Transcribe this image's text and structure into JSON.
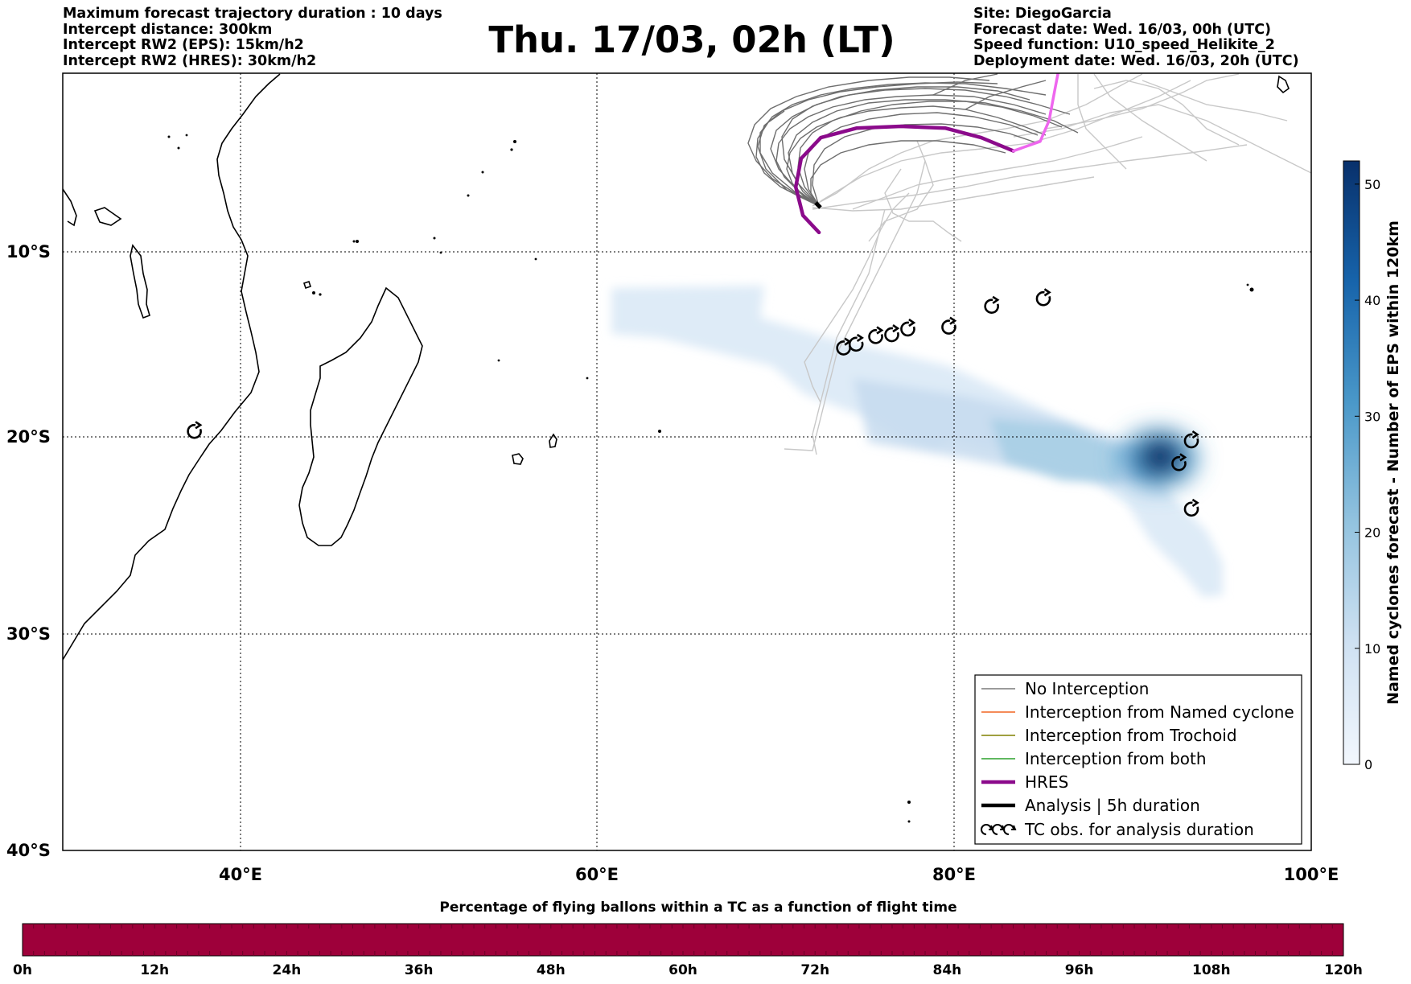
{
  "header": {
    "title": "Thu. 17/03, 02h (LT)",
    "info_left": [
      "Maximum forecast trajectory duration : 10 days",
      "Intercept distance: 300km",
      "Intercept RW2 (EPS):  15km/h2",
      "Intercept RW2 (HRES): 30km/h2"
    ],
    "info_right": [
      "Site: DiegoGarcia",
      "Forecast date: Wed. 16/03, 00h (UTC)",
      "Speed function: U10_speed_Helikite_2",
      "Deployment date: Wed. 16/03, 20h (UTC)"
    ]
  },
  "map": {
    "lon_range": [
      30,
      100
    ],
    "lat_range": [
      -40,
      1
    ],
    "lon_ticks": [
      {
        "value": 40,
        "label": "40°E"
      },
      {
        "value": 60,
        "label": "60°E"
      },
      {
        "value": 80,
        "label": "80°E"
      },
      {
        "value": 100,
        "label": "100°E"
      }
    ],
    "lat_ticks": [
      {
        "value": -10,
        "label": "10°S"
      },
      {
        "value": -20,
        "label": "20°S"
      },
      {
        "value": -30,
        "label": "30°S"
      },
      {
        "value": -40,
        "label": "40°S"
      }
    ],
    "gridlines": true,
    "colors": {
      "no_interception": "#7a7a7a",
      "named_cyclone": "#f26522",
      "trochoid": "#808000",
      "both": "#2ca02c",
      "hres": "#8b0a8b",
      "hres_pink": "#ee66ee",
      "analysis": "#000000",
      "density_low": "#deebf7",
      "density_high": "#08306b",
      "flight_bar": "#9e003a"
    },
    "hres_track": [
      [
        72.4,
        -7.4
      ],
      [
        71.5,
        -6.5
      ],
      [
        71.1,
        -5
      ],
      [
        71.4,
        -3.5
      ],
      [
        72.5,
        -2.4
      ],
      [
        74.5,
        -1.9
      ],
      [
        77,
        -1.8
      ],
      [
        79.5,
        -1.9
      ],
      [
        81.5,
        -2.4
      ],
      [
        83.3,
        -3.1
      ]
    ],
    "hres_pink_track": [
      [
        83.3,
        -3.1
      ],
      [
        84.8,
        -2.6
      ],
      [
        85.3,
        -1.5
      ],
      [
        85.6,
        0
      ],
      [
        85.8,
        1
      ]
    ],
    "tc_obs": [
      [
        73.8,
        -13.5
      ],
      [
        74.5,
        -13.3
      ],
      [
        75.6,
        -12.9
      ],
      [
        76.5,
        -12.8
      ],
      [
        77.4,
        -12.5
      ],
      [
        79.7,
        -12.4
      ],
      [
        82.1,
        -11.3
      ],
      [
        85,
        -10.9
      ],
      [
        93.3,
        -18.4
      ],
      [
        92.6,
        -19.6
      ],
      [
        93.3,
        -22
      ],
      [
        37.4,
        -17.9
      ]
    ]
  },
  "legend": {
    "placement": "lower-right",
    "items": [
      {
        "label": "No Interception",
        "color": "#7a7a7a",
        "style": "line-thin"
      },
      {
        "label": "Interception from Named cyclone",
        "color": "#f26522",
        "style": "line-thin"
      },
      {
        "label": "Interception from Trochoid",
        "color": "#808000",
        "style": "line-thin"
      },
      {
        "label": "Interception from both",
        "color": "#2ca02c",
        "style": "line-thin"
      },
      {
        "label": "HRES",
        "color": "#8b0a8b",
        "style": "line-thick"
      },
      {
        "label": "Analysis | 5h duration",
        "color": "#000000",
        "style": "line-thick"
      },
      {
        "label": "TC obs. for analysis duration",
        "color": "#000000",
        "style": "tc-symbols"
      }
    ]
  },
  "colorbar": {
    "label": "Named cyclones forecast - Number of EPS within 120km",
    "range": [
      0,
      52
    ],
    "ticks": [
      {
        "value": 0,
        "label": "0"
      },
      {
        "value": 10,
        "label": "10"
      },
      {
        "value": 20,
        "label": "20"
      },
      {
        "value": 30,
        "label": "30"
      },
      {
        "value": 40,
        "label": "40"
      },
      {
        "value": 50,
        "label": "50"
      }
    ]
  },
  "flight_bar": {
    "title": "Percentage of flying ballons within a TC as a function of flight time",
    "ticks": [
      "0h",
      "12h",
      "24h",
      "36h",
      "48h",
      "60h",
      "72h",
      "84h",
      "96h",
      "108h",
      "120h"
    ]
  }
}
